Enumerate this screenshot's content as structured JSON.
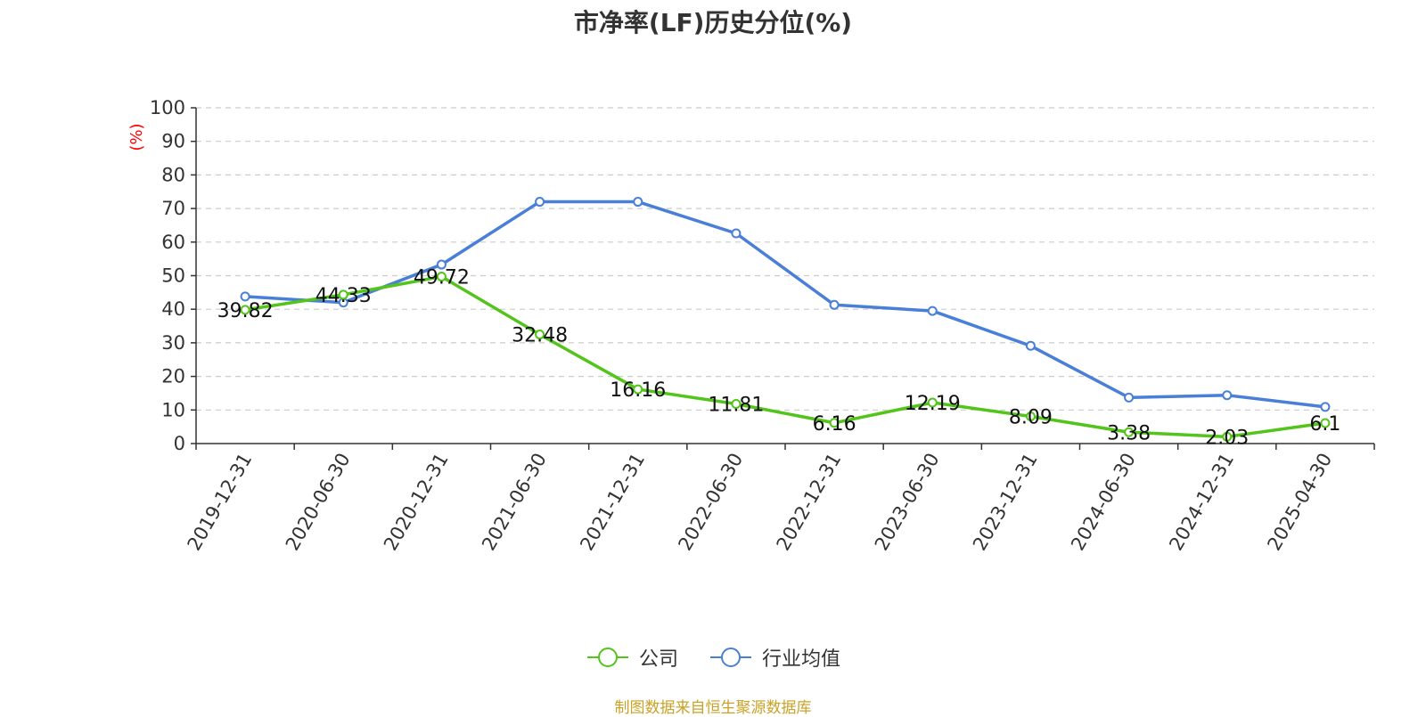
{
  "chart_data": {
    "type": "line",
    "title": "市净率(LF)历史分位(%)",
    "xlabel": "",
    "ylabel": "(%)",
    "ylim": [
      0,
      100
    ],
    "yticks": [
      0,
      10,
      20,
      30,
      40,
      50,
      60,
      70,
      80,
      90,
      100
    ],
    "grid": true,
    "legend_position": "bottom",
    "categories": [
      "2019-12-31",
      "2020-06-30",
      "2020-12-31",
      "2021-06-30",
      "2021-12-31",
      "2022-06-30",
      "2022-12-31",
      "2023-06-30",
      "2023-12-31",
      "2024-06-30",
      "2024-12-31",
      "2025-04-30"
    ],
    "series": [
      {
        "name": "公司",
        "color": "#52c41a",
        "values": [
          39.82,
          44.33,
          49.72,
          32.48,
          16.16,
          11.81,
          6.16,
          12.19,
          8.09,
          3.38,
          2.03,
          6.1
        ],
        "labels": [
          "39.82",
          "44.33",
          "49.72",
          "32.48",
          "16.16",
          "11.81",
          "6.16",
          "12.19",
          "8.09",
          "3.38",
          "2.03",
          "6.1"
        ]
      },
      {
        "name": "行业均值",
        "color": "#4a7fd8",
        "values": [
          43.8,
          42.0,
          53.3,
          72.0,
          72.0,
          62.6,
          41.3,
          39.5,
          29.1,
          13.7,
          14.4,
          10.9
        ]
      }
    ]
  },
  "colors": {
    "axis": "#333333",
    "grid": "#cccccc",
    "ylabel": "#ff0000",
    "source": "#c9a227"
  },
  "source_note": "制图数据来自恒生聚源数据库"
}
